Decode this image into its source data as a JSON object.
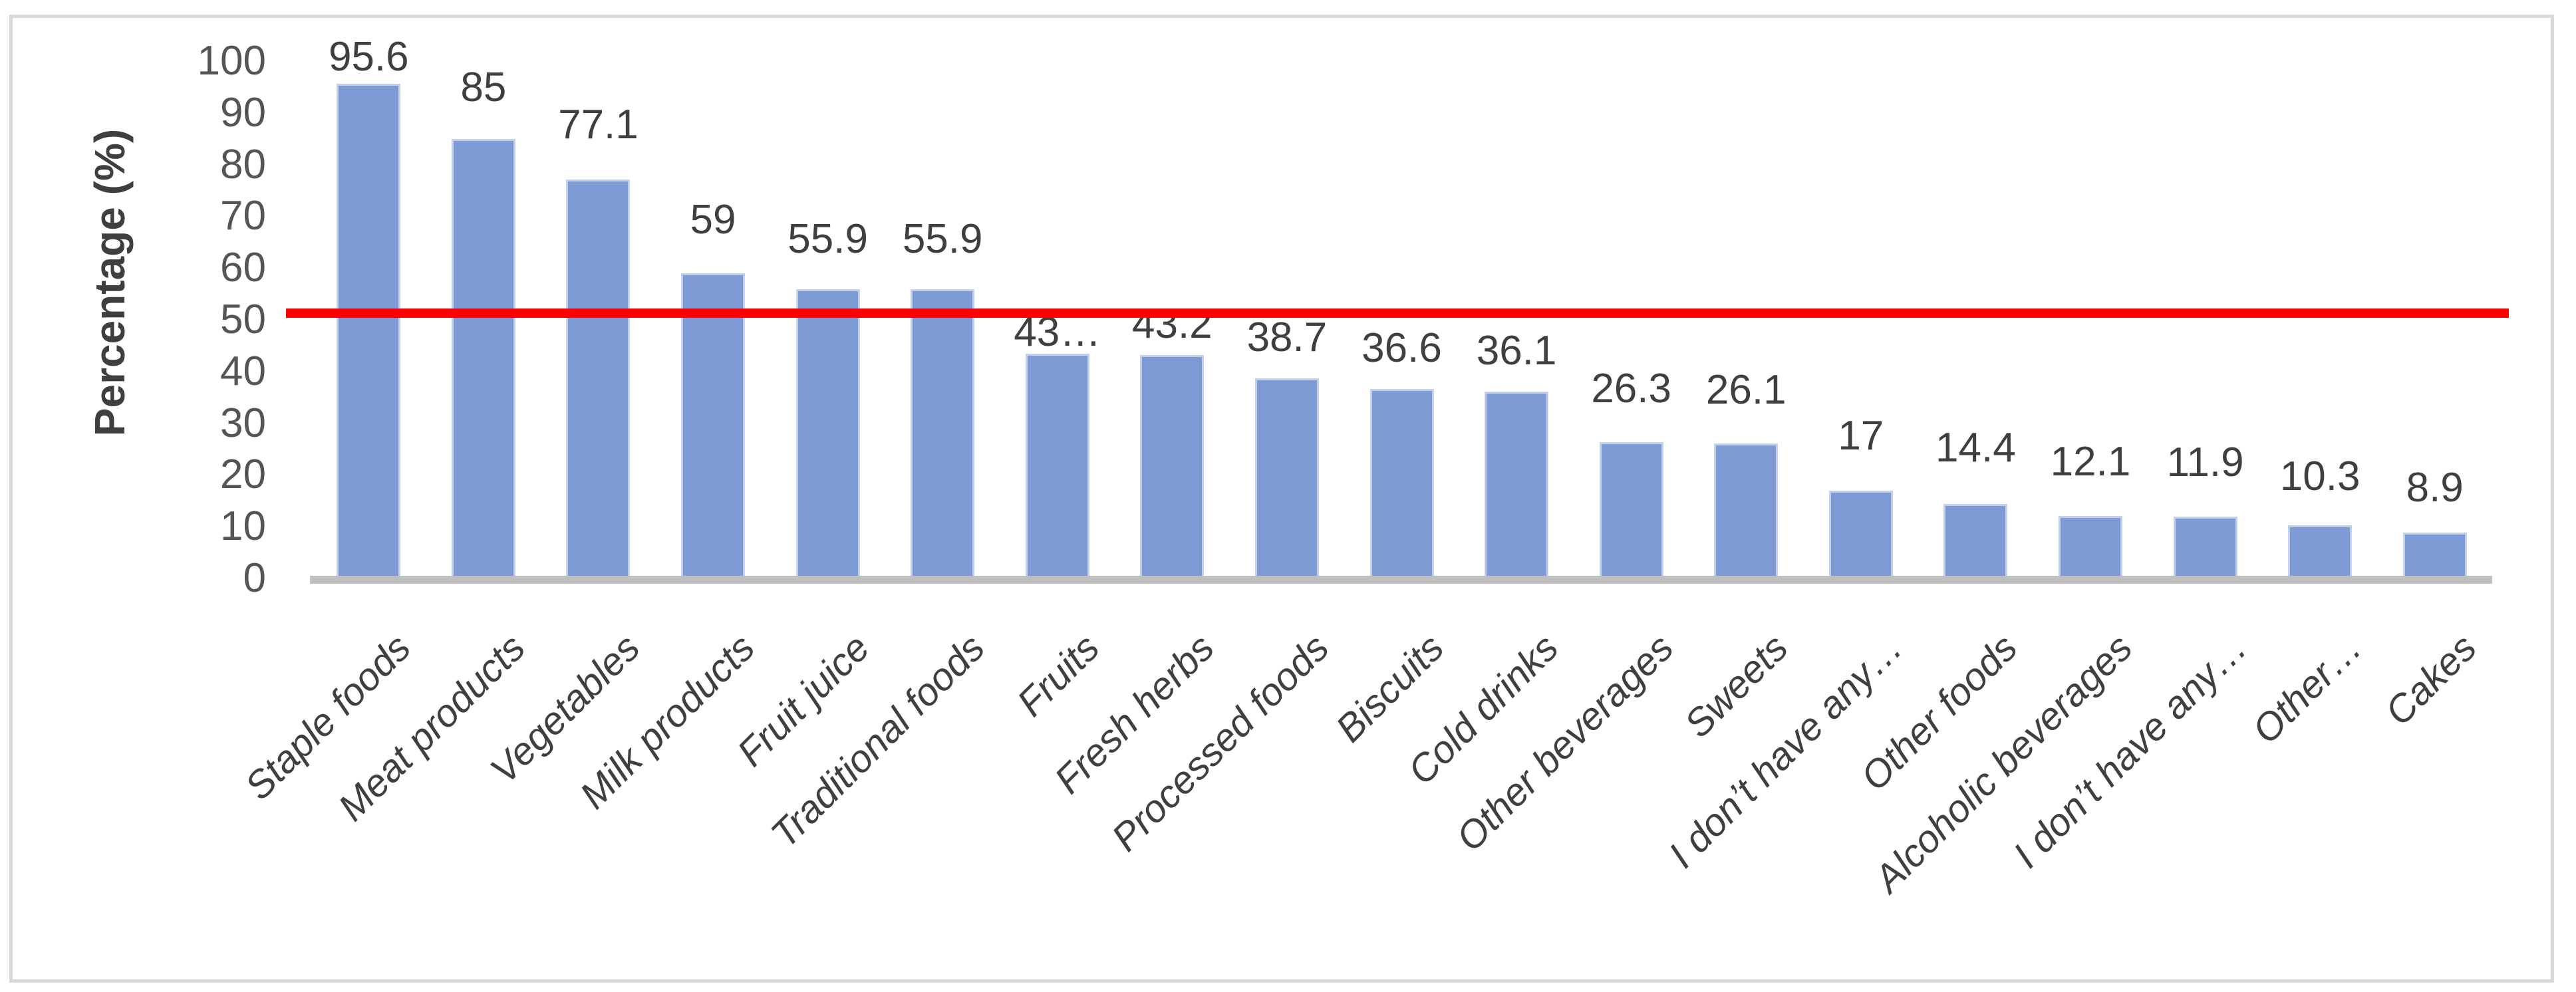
{
  "chart_data": {
    "type": "bar",
    "title": "",
    "xlabel": "",
    "ylabel": "Percentage (%)",
    "categories": [
      "Staple foods",
      "Meat products",
      "Vegetables",
      "Milk products",
      "Fruit juice",
      "Traditional foods",
      "Fruits",
      "Fresh herbs",
      "Processed foods",
      "Biscuits",
      "Cold drinks",
      "Other beverages",
      "Sweets",
      "I don’t have any…",
      "Other foods",
      "Alcoholic beverages",
      "I don’t have any…",
      "Other…",
      "Cakes"
    ],
    "values": [
      95.6,
      85,
      77.1,
      59,
      55.9,
      55.9,
      43.4,
      43.2,
      38.7,
      36.6,
      36.1,
      26.3,
      26.1,
      17,
      14.4,
      12.1,
      11.9,
      10.3,
      8.9
    ],
    "value_labels": [
      "95.6",
      "85",
      "77.1",
      "59",
      "55.9",
      "55.9",
      "43…",
      "43.2",
      "38.7",
      "36.6",
      "36.1",
      "26.3",
      "26.1",
      "17",
      "14.4",
      "12.1",
      "11.9",
      "10.3",
      "8.9"
    ],
    "y_ticks": [
      0,
      10,
      20,
      30,
      40,
      50,
      60,
      70,
      80,
      90,
      100
    ],
    "ylim": [
      0,
      100
    ],
    "grid": false,
    "legend": false,
    "bar_orientation": "vertical",
    "reference_line": {
      "value": 51.3,
      "color": "#FF0000"
    },
    "colors": {
      "bar_fill": "#7D9AD5",
      "bar_edge": "#C3D0EC",
      "axis_line": "#BFBFBF",
      "frame_border": "#D9D9D9",
      "tick_text": "#555555",
      "label_text": "#3F3F3F",
      "background": "#FFFFFF"
    },
    "label_offsets": [
      15,
      52,
      57,
      55,
      50,
      50,
      7,
      21,
      36,
      36,
      36,
      55,
      55,
      57,
      59,
      56,
      56,
      48,
      42
    ]
  }
}
